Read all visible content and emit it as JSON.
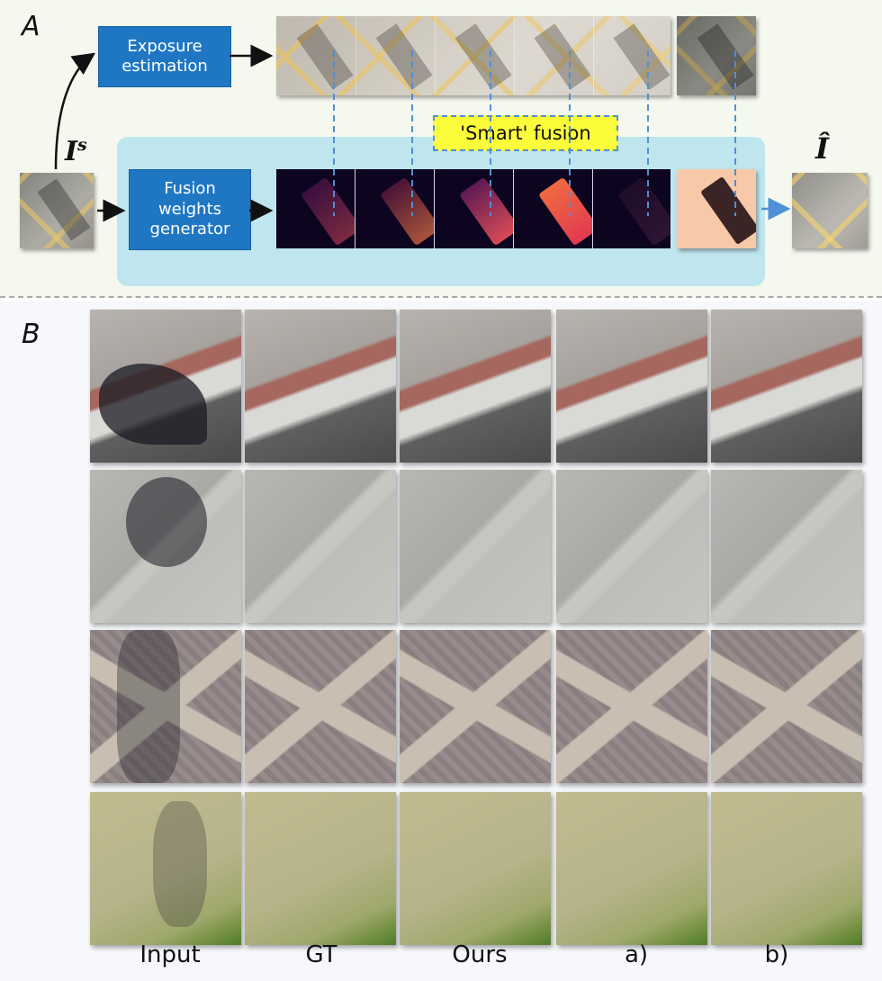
{
  "panel_a": {
    "label": "A",
    "exposure_box": "Exposure estimation",
    "fusion_box": "Fusion weights generator",
    "smart_fusion": "'Smart' fusion",
    "input_symbol": "I",
    "input_superscript": "s",
    "output_symbol": "Î"
  },
  "panel_b": {
    "label": "B",
    "columns": [
      "Input",
      "GT",
      "Ours",
      "a)",
      "b)"
    ],
    "rows": [
      {
        "scene": "curb-brick",
        "base": "#a9a9a6",
        "accent": "#a5675e"
      },
      {
        "scene": "curb-pavement",
        "base": "#b2b2ad",
        "accent": "#9c9c97"
      },
      {
        "scene": "herringbone-cross",
        "base": "#8f8584",
        "accent": "#c8bfb2"
      },
      {
        "scene": "grass-sand",
        "base": "#b7b48a",
        "accent": "#6f8f3e"
      }
    ]
  },
  "colors": {
    "blue_box": "#1f77c4",
    "fusion_area": "#bfe6ee",
    "smart_label": "#fbfc3a",
    "dash": "#4f90d6"
  }
}
